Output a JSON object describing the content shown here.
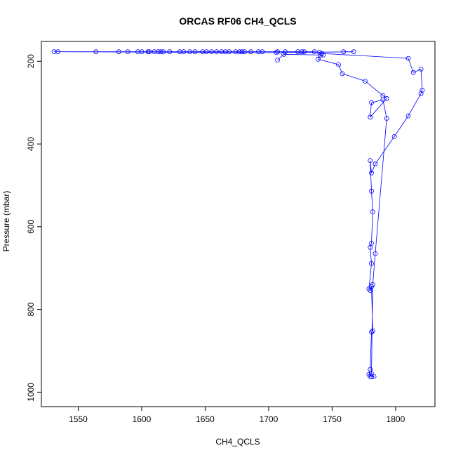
{
  "chart_data": {
    "type": "line",
    "title": "ORCAS RF06 CH4_QCLS",
    "xlabel": "CH4_QCLS",
    "ylabel": "Pressure (mbar)",
    "xlim": [
      1521,
      1831
    ],
    "ylim": [
      1035,
      152
    ],
    "y_reversed": true,
    "x_ticks": [
      1550,
      1600,
      1650,
      1700,
      1750,
      1800
    ],
    "y_ticks": [
      200,
      400,
      600,
      800,
      1000
    ],
    "grid": false,
    "legend": "none",
    "series_color": "#0000ff",
    "marker": "open-circle",
    "series": [
      {
        "name": "",
        "x": [
          1759,
          1767,
          1740,
          1706,
          1531,
          1534,
          1564,
          1582,
          1589,
          1597,
          1600,
          1605,
          1606,
          1610,
          1613,
          1615,
          1617,
          1622,
          1630,
          1633,
          1638,
          1642,
          1648,
          1651,
          1655,
          1659,
          1663,
          1666,
          1669,
          1674,
          1677,
          1679,
          1681,
          1686,
          1692,
          1695,
          1707,
          1713,
          1723,
          1726,
          1728,
          1736,
          1742,
          1810,
          1814,
          1820,
          1821,
          1820,
          1810,
          1799,
          1784,
          1781,
          1780,
          1781,
          1782,
          1781,
          1780,
          1781,
          1779,
          1780,
          1781,
          1782,
          1781,
          1780,
          1779,
          1780,
          1781,
          1783,
          1781,
          1782,
          1784,
          1793,
          1790,
          1781,
          1780,
          1793,
          1790,
          1776,
          1758,
          1755,
          1739,
          1741,
          1743,
          1712,
          1707
        ],
        "y": [
          177,
          177,
          178,
          179,
          177,
          177,
          177,
          177,
          177,
          177,
          177,
          177,
          177,
          177,
          177,
          177,
          177,
          177,
          177,
          177,
          177,
          177,
          177,
          177,
          177,
          177,
          177,
          177,
          177,
          177,
          177,
          177,
          177,
          177,
          177,
          177,
          177,
          177,
          177,
          177,
          177,
          177,
          181,
          193,
          227,
          219,
          270,
          278,
          332,
          382,
          448,
          470,
          440,
          514,
          564,
          640,
          650,
          689,
          750,
          754,
          745,
          852,
          855,
          945,
          957,
          962,
          963,
          962,
          955,
          740,
          665,
          338,
          293,
          300,
          335,
          290,
          283,
          248,
          230,
          208,
          195,
          186,
          185,
          183,
          197
        ]
      }
    ]
  }
}
